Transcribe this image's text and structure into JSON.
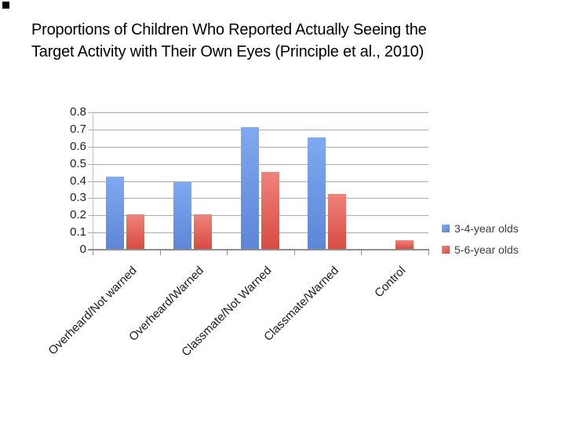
{
  "slide": {
    "title_line1": "Proportions of Children Who Reported Actually Seeing the",
    "title_line2": "Target Activity with Their Own Eyes (Principle et al., 2010)"
  },
  "chart_data": {
    "type": "bar",
    "title": "Proportions of Children Who Reported Actually Seeing the Target Activity with Their Own Eyes (Principle et al., 2010)",
    "categories": [
      "Overheard/Not warned",
      "Overheard/Warned",
      "Classmate/Not Warned",
      "Classmate/Warned",
      "Control"
    ],
    "series": [
      {
        "name": "3-4-year olds",
        "values": [
          0.42,
          0.39,
          0.71,
          0.65,
          0
        ],
        "color": "#6d9ce8",
        "color_top": "#7fa9f0",
        "color_bottom": "#5d86d8"
      },
      {
        "name": "5-6-year olds",
        "values": [
          0.2,
          0.2,
          0.45,
          0.32,
          0.05
        ],
        "color": "#dc544b",
        "color_top": "#ef837b",
        "color_bottom": "#d84b42"
      }
    ],
    "xlabel": "",
    "ylabel": "",
    "ylim": [
      0,
      0.8
    ],
    "yticks": [
      0.8,
      0.7,
      0.6,
      0.5,
      0.4,
      0.3,
      0.2,
      0.1,
      0
    ],
    "ytick_labels": [
      "0.8",
      "0.7",
      "0.6",
      "0.5",
      "0.4",
      "0.3",
      "0.2",
      "0.1",
      "0"
    ],
    "grid": true,
    "legend_position": "right"
  }
}
